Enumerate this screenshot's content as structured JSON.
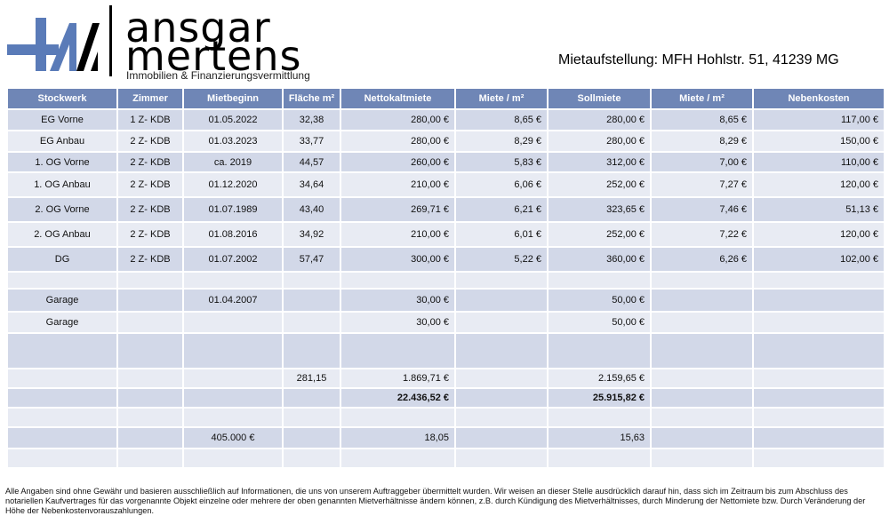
{
  "brand": {
    "line1": "ansgar",
    "line2": "mertens",
    "subtitle": "Immobilien & Finanzierungsvermittlung"
  },
  "title": "Mietaufstellung: MFH Hohlstr. 51, 41239 MG",
  "headers": [
    "Stockwerk",
    "Zimmer",
    "Mietbeginn",
    "Fläche m²",
    "Nettokaltmiete",
    "Miete / m²",
    "Sollmiete",
    "Miete / m²",
    "Nebenkosten"
  ],
  "rows": [
    [
      "EG Vorne",
      "1 Z- KDB",
      "01.05.2022",
      "32,38",
      "280,00 €",
      "8,65 €",
      "280,00 €",
      "8,65 €",
      "117,00 €"
    ],
    [
      "EG Anbau",
      "2 Z- KDB",
      "01.03.2023",
      "33,77",
      "280,00 €",
      "8,29 €",
      "280,00 €",
      "8,29 €",
      "150,00 €"
    ],
    [
      "1.  OG Vorne",
      "2 Z- KDB",
      "ca. 2019",
      "44,57",
      "260,00 €",
      "5,83 €",
      "312,00 €",
      "7,00 €",
      "110,00 €"
    ],
    [
      "1.  OG Anbau",
      "2 Z- KDB",
      "01.12.2020",
      "34,64",
      "210,00 €",
      "6,06 €",
      "252,00 €",
      "7,27 €",
      "120,00 €"
    ],
    [
      "2. OG Vorne",
      "2 Z- KDB",
      "01.07.1989",
      "43,40",
      "269,71 €",
      "6,21 €",
      "323,65 €",
      "7,46 €",
      "51,13 €"
    ],
    [
      "2. OG Anbau",
      "2 Z- KDB",
      "01.08.2016",
      "34,92",
      "210,00 €",
      "6,01 €",
      "252,00 €",
      "7,22 €",
      "120,00 €"
    ],
    [
      "DG",
      "2 Z- KDB",
      "01.07.2002",
      "57,47",
      "300,00 €",
      "5,22 €",
      "360,00 €",
      "6,26 €",
      "102,00 €"
    ],
    [
      "",
      "",
      "",
      "",
      "",
      "",
      "",
      "",
      ""
    ],
    [
      "Garage",
      "",
      "01.04.2007",
      "",
      "30,00 €",
      "",
      "50,00 €",
      "",
      ""
    ],
    [
      "Garage",
      "",
      "",
      "",
      "30,00 €",
      "",
      "50,00 €",
      "",
      ""
    ],
    [
      "",
      "",
      "",
      "",
      "",
      "",
      "",
      "",
      ""
    ],
    [
      "",
      "",
      "",
      "281,15",
      "1.869,71 €",
      "",
      "2.159,65 €",
      "",
      ""
    ],
    [
      "",
      "",
      "",
      "",
      "22.436,52 €",
      "",
      "25.915,82 €",
      "",
      ""
    ],
    [
      "",
      "",
      "",
      "",
      "",
      "",
      "",
      "",
      ""
    ],
    [
      "",
      "",
      "405.000 €",
      "",
      "18,05",
      "",
      "15,63",
      "",
      ""
    ],
    [
      "",
      "",
      "",
      "",
      "",
      "",
      "",
      "",
      ""
    ]
  ],
  "footer": "Alle Angaben sind ohne Gewähr und basieren ausschließlich auf Informationen, die uns von unserem Auftraggeber übermittelt wurden. Wir weisen an dieser Stelle ausdrücklich darauf hin, dass sich im Zeitraum bis zum Abschluss des notariellen Kaufvertrages für das vorgenannte Objekt einzelne oder mehrere der oben genannten Mietverhältnisse ändern können, z.B. durch Kündigung des Mietverhältnisses, durch Minderung der Nettomiete bzw. Durch Veränderung der Höhe der Nebenkostenvorauszahlungen.",
  "colors": {
    "header": "#6f86b6",
    "row_dark": "#d2d8e8",
    "row_light": "#e8ebf3",
    "logo_blue": "#5a7bb8"
  }
}
